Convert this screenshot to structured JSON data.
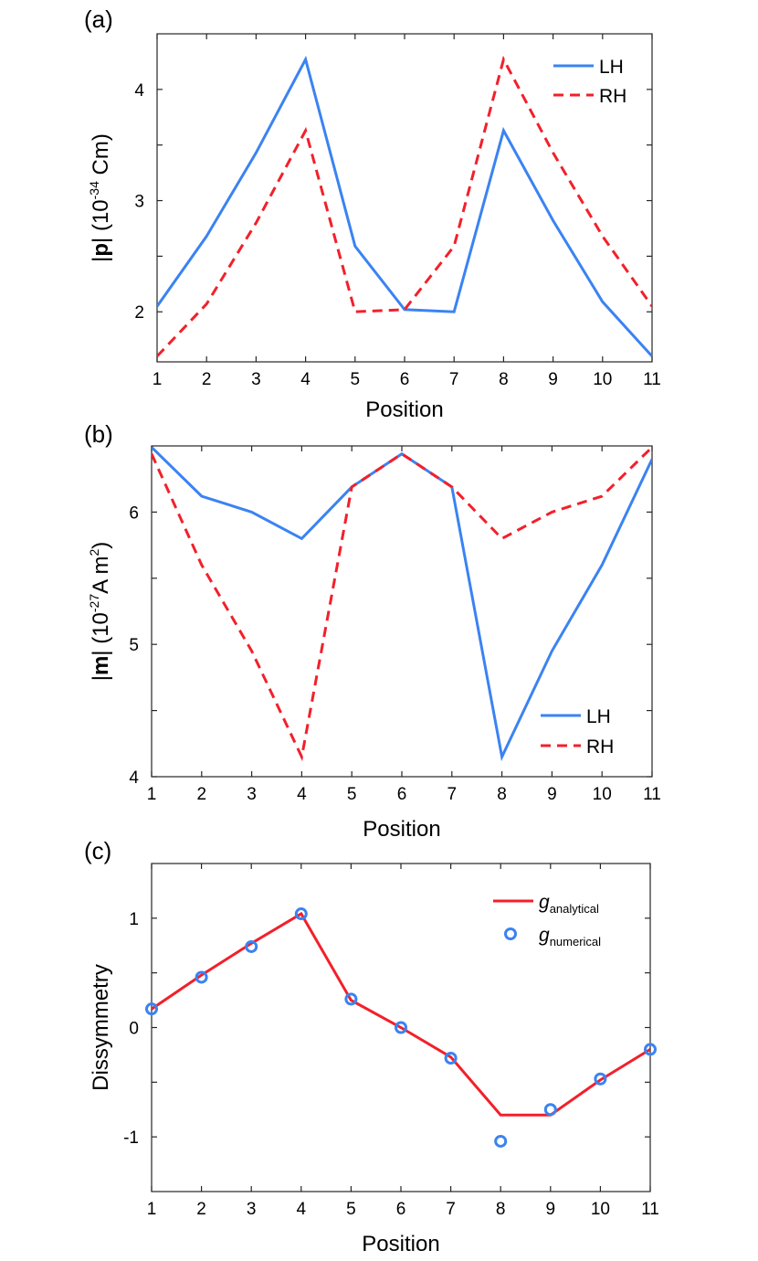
{
  "chart_data": [
    {
      "type": "line",
      "panel": "(a)",
      "title": "",
      "xlabel": "Position",
      "ylabel": {
        "main": "|",
        "bold": "p",
        "rest": "| (10",
        "sup": "-34",
        "unit": " Cm)"
      },
      "x": [
        1,
        2,
        3,
        4,
        5,
        6,
        7,
        8,
        9,
        10,
        11
      ],
      "xlim": [
        1,
        11
      ],
      "ylim": [
        1.55,
        4.5
      ],
      "yticks": [
        2,
        3,
        4
      ],
      "yticks_minor": [
        2.5,
        3.5
      ],
      "legend_position": "top-right",
      "series": [
        {
          "name": "LH",
          "style": "solid",
          "color": "#3a83f2",
          "values": [
            2.05,
            2.68,
            3.43,
            4.27,
            2.59,
            2.02,
            2.0,
            3.63,
            2.82,
            2.09,
            1.6
          ]
        },
        {
          "name": "RH",
          "style": "dashed",
          "color": "#f2202a",
          "values": [
            1.6,
            2.07,
            2.8,
            3.63,
            2.0,
            2.02,
            2.59,
            4.27,
            3.43,
            2.68,
            2.05
          ]
        }
      ]
    },
    {
      "type": "line",
      "panel": "(b)",
      "title": "",
      "xlabel": "Position",
      "ylabel": {
        "main": "|",
        "bold": "m",
        "rest": "| (10",
        "sup": "-27",
        "unit": "A m",
        "sup2": "2",
        "close": ")"
      },
      "x": [
        1,
        2,
        3,
        4,
        5,
        6,
        7,
        8,
        9,
        10,
        11
      ],
      "xlim": [
        1,
        11
      ],
      "ylim": [
        4,
        6.5
      ],
      "yticks": [
        4,
        5,
        6
      ],
      "yticks_minor": [
        4.5,
        5.5
      ],
      "legend_position": "bottom-right",
      "series": [
        {
          "name": "LH",
          "style": "solid",
          "color": "#3a83f2",
          "values": [
            6.49,
            6.12,
            6.0,
            5.8,
            6.19,
            6.44,
            6.19,
            4.15,
            4.95,
            5.6,
            6.4
          ]
        },
        {
          "name": "RH",
          "style": "dashed",
          "color": "#f2202a",
          "values": [
            6.44,
            5.6,
            4.95,
            4.15,
            6.19,
            6.44,
            6.19,
            5.8,
            6.0,
            6.12,
            6.49
          ]
        }
      ]
    },
    {
      "type": "line",
      "panel": "(c)",
      "title": "",
      "xlabel": "Position",
      "ylabel": {
        "main": "Dissymmetry"
      },
      "x": [
        1,
        2,
        3,
        4,
        5,
        6,
        7,
        8,
        9,
        10,
        11
      ],
      "xlim": [
        1,
        11
      ],
      "ylim": [
        -1.5,
        1.5
      ],
      "yticks": [
        -1,
        0,
        1
      ],
      "ytick_labels": [
        "-1",
        "0",
        "1"
      ],
      "yticks_minor": [
        -0.5,
        0.5
      ],
      "legend_position": "top-right",
      "series": [
        {
          "name": "g",
          "sub": "analytical",
          "style": "solid",
          "color": "#f2202a",
          "values": [
            0.17,
            0.48,
            0.77,
            1.04,
            0.25,
            0.0,
            -0.27,
            -0.8,
            -0.8,
            -0.48,
            -0.2
          ]
        },
        {
          "name": "g",
          "sub": "numerical",
          "style": "circle",
          "color": "#3a83f2",
          "values": [
            0.17,
            0.46,
            0.74,
            1.04,
            0.26,
            0.0,
            -0.28,
            -1.04,
            -0.75,
            -0.47,
            -0.2
          ]
        }
      ]
    }
  ]
}
